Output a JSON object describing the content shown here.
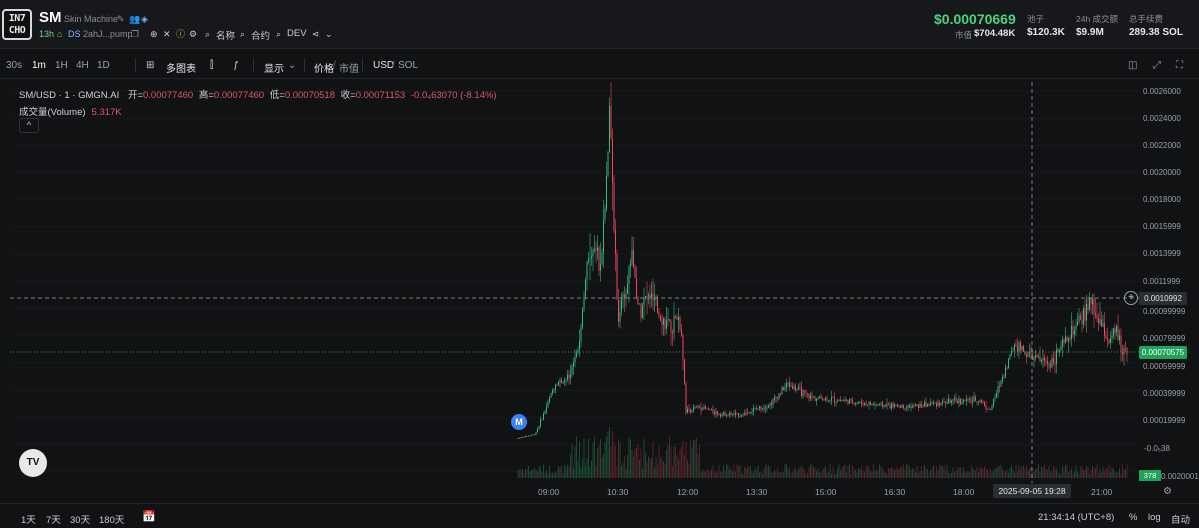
{
  "header": {
    "logo_text": "IN7\nCHO",
    "ticker": "SM",
    "token_name": "Skin Machine",
    "age": "13h",
    "ds_label": "DS",
    "source": "2ahJ...pump",
    "chips": [
      "名称",
      "合约",
      "DEV"
    ],
    "price": "$0.00070669",
    "mcap_label": "市值",
    "mcap_value": "$704.48K",
    "stats": [
      {
        "label": "池子",
        "value": "$120.3K"
      },
      {
        "label": "24h 成交额",
        "value": "$9.9M"
      },
      {
        "label": "总手续费",
        "value": "289.38 SOL"
      }
    ]
  },
  "toolbar": {
    "intervals": [
      "30s",
      "1m",
      "1H",
      "4H",
      "1D"
    ],
    "active_interval": "1m",
    "multi_chart": "多图表",
    "display": "显示",
    "price_label": "价格",
    "mcap_label": "市值",
    "usd_label": "USD",
    "sol_label": "SOL"
  },
  "legend": {
    "symbol": "SM/USD · 1 · GMGN.AI",
    "open_label": "开=",
    "open": "0.00077460",
    "high_label": "高=",
    "high": "0.00077460",
    "low_label": "低=",
    "low": "0.00070518",
    "close_label": "收=",
    "close": "0.00071153",
    "change": "-0.0₄63070 (-8.14%)",
    "volume_label": "成交量(Volume)",
    "volume_value": "5.317K",
    "collapse": "^"
  },
  "price_axis": [
    "0.0026000",
    "0.0024000",
    "0.0022000",
    "0.0020000",
    "0.0018000",
    "0.0015999",
    "0.0013999",
    "0.0011999",
    "0.00099999",
    "0.00079999",
    "0.00059999",
    "0.00039999",
    "0.00019999",
    "-0.0₅38",
    "0.0020001"
  ],
  "crosshair_price": "0.0010992",
  "last_price": "0.00070575",
  "volume_tag": "378",
  "marker_label": "M",
  "tv_logo": "TV",
  "time_axis": [
    "09:00",
    "10:30",
    "12:00",
    "13:30",
    "15:00",
    "16:30",
    "18:00",
    "21:00"
  ],
  "crosshair_time": "2025-09-05  19:28",
  "bottom": {
    "ranges": [
      "1天",
      "7天",
      "30天",
      "180天"
    ],
    "clock": "21:34:14 (UTC+8)",
    "percent": "%",
    "log": "log",
    "auto": "自动"
  },
  "colors": {
    "up": "#2ebd85",
    "down": "#f6465d",
    "accent": "#4ed17d"
  }
}
